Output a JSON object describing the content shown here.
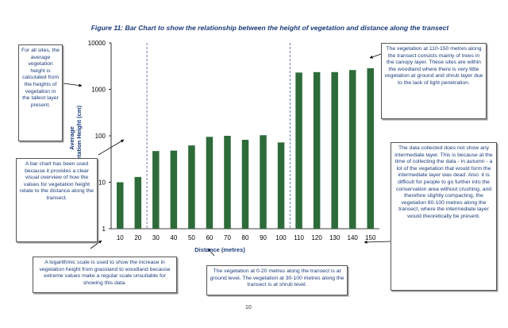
{
  "page_number": "10",
  "chart_data": {
    "type": "bar",
    "title": "Figure 11: Bar Chart to show the relationship between the height of vegetation and distance along the transect",
    "xlabel": "Distance (metres)",
    "ylabel": "Average Vegetation Height (cm)",
    "yscale": "log",
    "ylim": [
      1,
      10000
    ],
    "yticks": [
      "1",
      "10",
      "100",
      "1000",
      "10000"
    ],
    "grid": false,
    "legend": "none",
    "bar_color": "#2e6b3a",
    "divider_color": "#4a5a9a",
    "categories": [
      "10",
      "20",
      "30",
      "40",
      "50",
      "60",
      "70",
      "80",
      "90",
      "100",
      "110",
      "120",
      "130",
      "140",
      "150"
    ],
    "values": [
      10,
      13,
      47,
      48,
      62,
      95,
      100,
      82,
      103,
      72,
      2300,
      2350,
      2350,
      2600,
      2850
    ],
    "dividers_after_category": [
      "25",
      "105"
    ]
  },
  "notes": {
    "all_sites": "For all sites, the average vegetation height is calculated from the heights of vegetation in the tallest layer present.",
    "bar_chart": "A bar chart has been used because it provides a clear visual overview of how the values for vegetation height relate to the distance along the transect.",
    "log_scale": "A logarithmic scale is used to show the increase in vegetation height from grassland to woodland because extreme values make a regular scale unsuitable for showing this data.",
    "ground_shrub": "The vegetation at 0-20 metres along the transect is at ground level. The vegetation at 30-100 metres along the transect is at shrub level.",
    "woodland": "The vegetation at 110-150 metres along the transect consists mainly of trees in the canopy layer. These sites are within the woodland where there is very little vegetation at ground and shrub layer due to the lack of light penetration.",
    "intermediate": "The data collected does not show any intermediate layer. This is because at the time of collecting the data - in autumn - a lot of the vegetation that would form the intermediate layer was dead. Also: it is difficult for people to go further into the conservation area without crushing, and therefore slightly compacting, the vegetation 80-100 metres along the transect, where the intermediate layer would theoretically be present."
  }
}
